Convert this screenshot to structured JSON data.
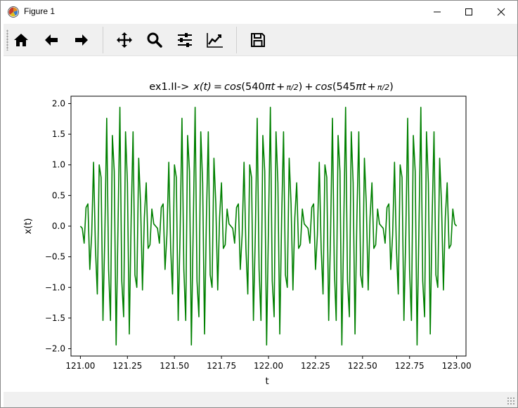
{
  "window": {
    "title": "Figure 1"
  },
  "toolbar": {
    "icons": [
      "home-icon",
      "back-arrow-icon",
      "forward-arrow-icon",
      "pan-icon",
      "zoom-icon",
      "configure-subplots-icon",
      "edit-axis-icon",
      "save-icon"
    ]
  },
  "chart_data": {
    "type": "line",
    "title": "ex1.II-> x(t) = cos(540πt + π/2) + cos(545πt + π/2)",
    "title_prefix": "ex1.II->",
    "xlabel": "t",
    "ylabel": "x(t)",
    "xlim": [
      120.95,
      123.05
    ],
    "ylim": [
      -2.12,
      2.12
    ],
    "xticks": [
      121.0,
      121.25,
      121.5,
      121.75,
      122.0,
      122.25,
      122.5,
      122.75,
      123.0
    ],
    "xtick_labels": [
      "121.00",
      "121.25",
      "121.50",
      "121.75",
      "122.00",
      "122.25",
      "122.50",
      "122.75",
      "123.00"
    ],
    "yticks": [
      2.0,
      1.5,
      1.0,
      0.5,
      0.0,
      -0.5,
      -1.0,
      -1.5,
      -2.0
    ],
    "ytick_labels": [
      "2.0",
      "1.5",
      "1.0",
      "0.5",
      "0.0",
      "−0.5",
      "−1.0",
      "−1.5",
      "−2.0"
    ],
    "grid": false,
    "series": [
      {
        "color": "#008000",
        "x_start": 121.0,
        "x_end": 123.0,
        "num_points": 201,
        "freq1": 540,
        "freq2": 545,
        "phase": "π/2"
      }
    ]
  }
}
